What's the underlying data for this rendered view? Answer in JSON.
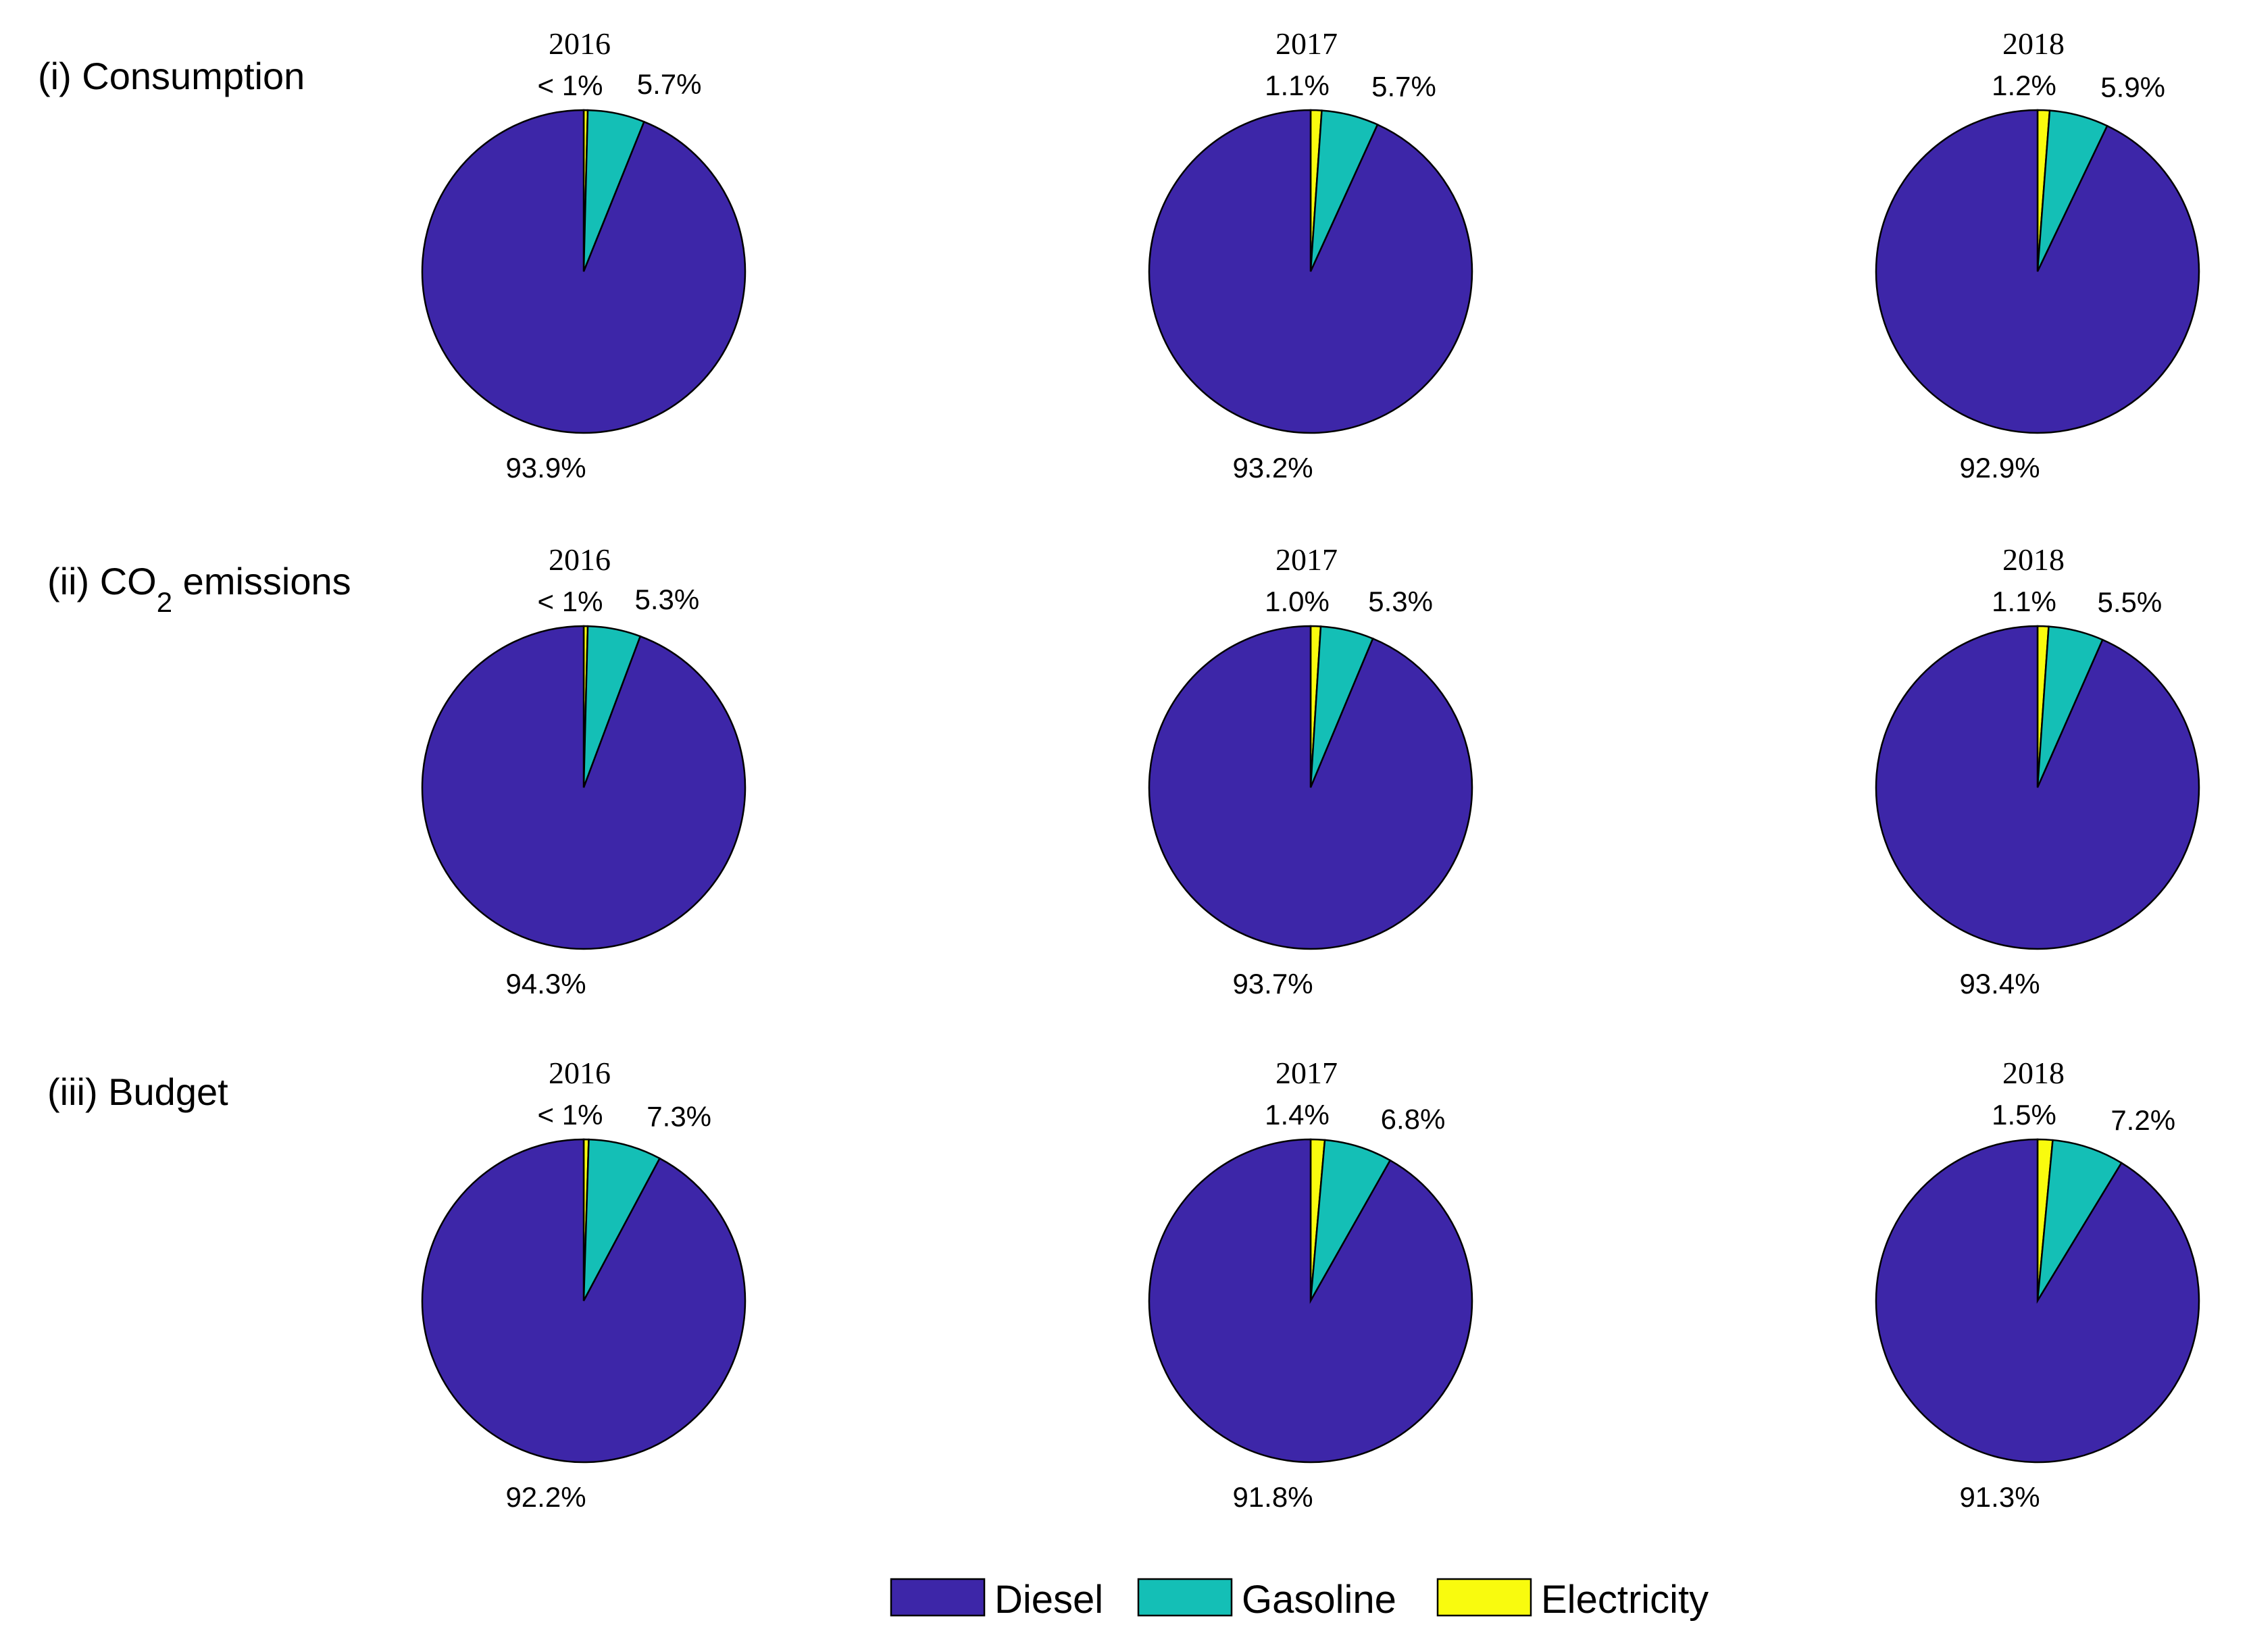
{
  "colors": {
    "Diesel": "#3d26a8",
    "Gasoline": "#14bfb6",
    "Electricity": "#f9fb0e"
  },
  "legend": [
    {
      "name": "Diesel",
      "color": "#3d26a8"
    },
    {
      "name": "Gasoline",
      "color": "#14bfb6"
    },
    {
      "name": "Electricity",
      "color": "#f9fb0e"
    }
  ],
  "rows": [
    {
      "title": "(i) Consumption"
    },
    {
      "title": "(ii) CO",
      "sub": "2",
      "title_suffix": " emissions"
    },
    {
      "title": "(iii) Budget"
    }
  ],
  "chart_data": [
    {
      "type": "pie",
      "row": 0,
      "title": "2016",
      "categories": [
        "Diesel",
        "Gasoline",
        "Electricity"
      ],
      "values": [
        93.9,
        5.7,
        0.4
      ],
      "labels": [
        "93.9%",
        "5.7%",
        "< 1%"
      ]
    },
    {
      "type": "pie",
      "row": 0,
      "title": "2017",
      "categories": [
        "Diesel",
        "Gasoline",
        "Electricity"
      ],
      "values": [
        93.2,
        5.7,
        1.1
      ],
      "labels": [
        "93.2%",
        "5.7%",
        "1.1%"
      ]
    },
    {
      "type": "pie",
      "row": 0,
      "title": "2018",
      "categories": [
        "Diesel",
        "Gasoline",
        "Electricity"
      ],
      "values": [
        92.9,
        5.9,
        1.2
      ],
      "labels": [
        "92.9%",
        "5.9%",
        "1.2%"
      ]
    },
    {
      "type": "pie",
      "row": 1,
      "title": "2016",
      "categories": [
        "Diesel",
        "Gasoline",
        "Electricity"
      ],
      "values": [
        94.3,
        5.3,
        0.4
      ],
      "labels": [
        "94.3%",
        "5.3%",
        "< 1%"
      ]
    },
    {
      "type": "pie",
      "row": 1,
      "title": "2017",
      "categories": [
        "Diesel",
        "Gasoline",
        "Electricity"
      ],
      "values": [
        93.7,
        5.3,
        1.0
      ],
      "labels": [
        "93.7%",
        "5.3%",
        "1.0%"
      ]
    },
    {
      "type": "pie",
      "row": 1,
      "title": "2018",
      "categories": [
        "Diesel",
        "Gasoline",
        "Electricity"
      ],
      "values": [
        93.4,
        5.5,
        1.1
      ],
      "labels": [
        "93.4%",
        "5.5%",
        "1.1%"
      ]
    },
    {
      "type": "pie",
      "row": 2,
      "title": "2016",
      "categories": [
        "Diesel",
        "Gasoline",
        "Electricity"
      ],
      "values": [
        92.2,
        7.3,
        0.5
      ],
      "labels": [
        "92.2%",
        "7.3%",
        "< 1%"
      ]
    },
    {
      "type": "pie",
      "row": 2,
      "title": "2017",
      "categories": [
        "Diesel",
        "Gasoline",
        "Electricity"
      ],
      "values": [
        91.8,
        6.8,
        1.4
      ],
      "labels": [
        "91.8%",
        "6.8%",
        "1.4%"
      ]
    },
    {
      "type": "pie",
      "row": 2,
      "title": "2018",
      "categories": [
        "Diesel",
        "Gasoline",
        "Electricity"
      ],
      "values": [
        91.3,
        7.2,
        1.5
      ],
      "labels": [
        "91.3%",
        "7.2%",
        "1.5%"
      ]
    }
  ]
}
